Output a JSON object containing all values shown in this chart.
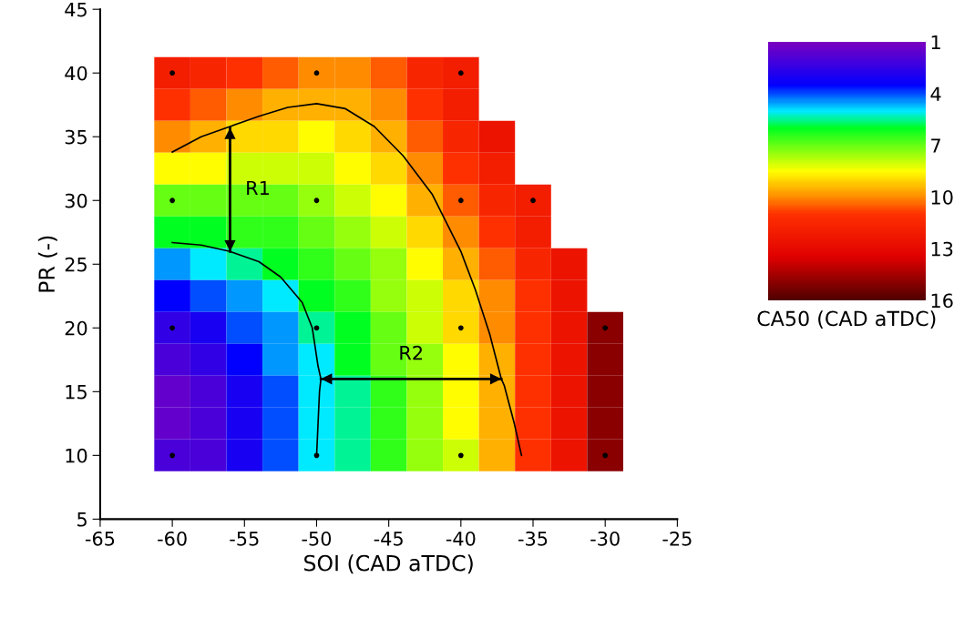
{
  "chart_data": {
    "type": "heatmap",
    "xlabel": "SOI (CAD aTDC)",
    "ylabel": "PR (-)",
    "clabel": "CA50 (CAD aTDC)",
    "x": [
      -60,
      -57.5,
      -55,
      -52.5,
      -50,
      -47.5,
      -45,
      -42.5,
      -40,
      -37.5,
      -35,
      -32.5,
      -30
    ],
    "y": [
      40,
      37.5,
      35,
      32.5,
      30,
      27.5,
      25,
      22.5,
      20,
      17.5,
      15,
      12.5,
      10
    ],
    "cells": [
      [
        12,
        11.5,
        11,
        10.5,
        10,
        10,
        10.5,
        11.5,
        12,
        null,
        null,
        null,
        null
      ],
      [
        11,
        10.5,
        10,
        9.5,
        9.5,
        9.5,
        10,
        11,
        12,
        null,
        null,
        null,
        null
      ],
      [
        10,
        9.5,
        9,
        9,
        8.5,
        9,
        9.5,
        10.5,
        11.5,
        12.5,
        null,
        null,
        null
      ],
      [
        8.5,
        8.5,
        8,
        8,
        8,
        8.5,
        9,
        10,
        11,
        12,
        null,
        null,
        null
      ],
      [
        7,
        7,
        7,
        7,
        7.5,
        8,
        8.5,
        9.5,
        10.5,
        11.5,
        12,
        null,
        null
      ],
      [
        6,
        6,
        6.5,
        6.5,
        7,
        7.5,
        8,
        9,
        10,
        11,
        12,
        null,
        null
      ],
      [
        4.5,
        5,
        5.5,
        6,
        6.5,
        7,
        7.5,
        8.5,
        9.5,
        10.5,
        11.5,
        12.5,
        null
      ],
      [
        3.5,
        4,
        4.5,
        5,
        6,
        6.5,
        7.5,
        8,
        9,
        10,
        11,
        12.5,
        null
      ],
      [
        2.5,
        3,
        4,
        4.5,
        5.5,
        6,
        7,
        8,
        9,
        10,
        11,
        12.5,
        15
      ],
      [
        2,
        2.5,
        3.5,
        4.5,
        5,
        6,
        7,
        7.5,
        8.5,
        9.5,
        11,
        12.5,
        15
      ],
      [
        1.5,
        2,
        3,
        4,
        5,
        5.5,
        6.5,
        7.5,
        8.5,
        9.5,
        11,
        12.5,
        15
      ],
      [
        1.5,
        2,
        3,
        4,
        5,
        5.5,
        6.5,
        7.5,
        8.5,
        9.5,
        11,
        12.5,
        15
      ],
      [
        2,
        2,
        3,
        4,
        5,
        5.5,
        6.5,
        7.5,
        8,
        9.5,
        11,
        12.5,
        15
      ]
    ],
    "clim": [
      16,
      1
    ],
    "cticks": [
      1,
      4,
      7,
      10,
      13,
      16
    ],
    "xlim": [
      -65,
      -25
    ],
    "xticks": [
      -65,
      -60,
      -55,
      -50,
      -45,
      -40,
      -35,
      -30,
      -25
    ],
    "ylim": [
      5,
      45
    ],
    "yticks": [
      5,
      10,
      15,
      20,
      25,
      30,
      35,
      40,
      45
    ],
    "grid": false,
    "series": [
      {
        "type": "line",
        "color": "#000000",
        "x": [
          -60,
          -58,
          -56,
          -54,
          -52.5,
          -51,
          -50.3,
          -49.9,
          -49.7,
          -49.8,
          -49.9,
          -50
        ],
        "values": [
          26.7,
          26.5,
          26,
          25.2,
          24,
          22,
          20,
          17,
          16,
          15,
          12.5,
          10
        ]
      },
      {
        "type": "line",
        "color": "#000000",
        "x": [
          -60,
          -58,
          -56,
          -54,
          -52,
          -50,
          -48,
          -46,
          -44,
          -42,
          -40,
          -39,
          -38,
          -37.2,
          -37,
          -36.3,
          -35.8
        ],
        "values": [
          33.8,
          35,
          35.8,
          36.6,
          37.3,
          37.6,
          37.2,
          35.8,
          33.5,
          30.5,
          26,
          23,
          19.5,
          16,
          15.5,
          12.5,
          10
        ]
      },
      {
        "type": "line",
        "color": "#000000",
        "x": [
          -56,
          -56
        ],
        "values": [
          35.7,
          26
        ]
      },
      {
        "type": "line",
        "color": "#000000",
        "x": [
          -49.7,
          -37.2
        ],
        "values": [
          16,
          16
        ]
      },
      {
        "type": "scatter",
        "color": "#000000",
        "marker": "circle",
        "x": [
          -60,
          -50,
          -40,
          -60,
          -50,
          -40,
          -35,
          -60,
          -50,
          -40,
          -30,
          -60,
          -50,
          -40,
          -30
        ],
        "values": [
          40,
          40,
          40,
          30,
          30,
          30,
          30,
          20,
          20,
          20,
          20,
          10,
          10,
          10,
          10
        ]
      }
    ],
    "annotations": [
      "R1",
      "R2"
    ]
  }
}
